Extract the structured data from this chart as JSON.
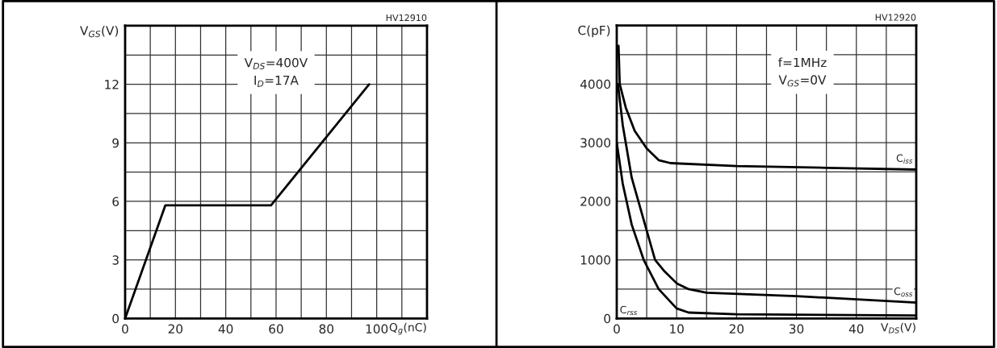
{
  "chart_data": [
    {
      "type": "line",
      "xlabel": "Q$_{g}$(nC)",
      "ylabel": "V$_{GS}$(V)",
      "annotations": [
        "HV12910",
        "V$_{DS}$=400V\nI$_{D}$=17A"
      ],
      "series": [
        {
          "color": "#000000",
          "x": [
            0,
            16,
            58,
            97
          ],
          "values": [
            0,
            5.8,
            5.8,
            12
          ]
        }
      ],
      "xlim": [
        0,
        120
      ],
      "xticks": [
        0,
        {
          "value": 10,
          "label": null
        },
        20,
        {
          "value": 30,
          "label": null
        },
        40,
        {
          "value": 50,
          "label": null
        },
        60,
        {
          "value": 70,
          "label": null
        },
        80,
        {
          "value": 90,
          "label": null
        },
        100,
        {
          "value": 110,
          "label": null
        }
      ],
      "ylim": [
        0,
        15
      ],
      "yticks": [
        0,
        {
          "value": 1.5,
          "label": null
        },
        3,
        {
          "value": 4.5,
          "label": null
        },
        6,
        {
          "value": 7.5,
          "label": null
        },
        9,
        {
          "value": 10.5,
          "label": null
        },
        12,
        {
          "value": 13.5,
          "label": null
        }
      ],
      "grid": true,
      "legend": false,
      "line_style": "solid"
    },
    {
      "type": "line",
      "xlabel": "V$_{DS}$(V)",
      "ylabel": "C(pF)",
      "annotations": [
        "HV12920",
        "f=1MHz\nV$_{GS}$=0V",
        "C$_{rss}$"
      ],
      "series": [
        {
          "name": "C$_{iss}$",
          "color": "#000000",
          "x": [
            0.3,
            0.5,
            1.5,
            3,
            5,
            7,
            9,
            20,
            35,
            50
          ],
          "values": [
            4650,
            4000,
            3600,
            3200,
            2900,
            2700,
            2650,
            2600,
            2570,
            2540
          ]
        },
        {
          "name": "C$_{oss}$",
          "color": "#000000",
          "x": [
            0.2,
            1,
            2.5,
            5,
            6.4,
            8,
            10,
            12,
            15,
            30,
            50
          ],
          "values": [
            4000,
            3300,
            2400,
            1500,
            1000,
            800,
            600,
            500,
            440,
            380,
            270
          ]
        },
        {
          "color": "#000000",
          "x": [
            0,
            1,
            2.5,
            4.5,
            7,
            10,
            12,
            20,
            50
          ],
          "values": [
            3000,
            2300,
            1600,
            1000,
            500,
            170,
            100,
            70,
            50
          ]
        }
      ],
      "xlim": [
        0,
        50
      ],
      "xticks": [
        0,
        {
          "value": 5,
          "label": null
        },
        10,
        {
          "value": 15,
          "label": null
        },
        20,
        {
          "value": 25,
          "label": null
        },
        30,
        {
          "value": 35,
          "label": null
        },
        40,
        {
          "value": 45,
          "label": null
        }
      ],
      "ylim": [
        0,
        5000
      ],
      "yticks": [
        0,
        {
          "value": 500,
          "label": null
        },
        1000,
        {
          "value": 1500,
          "label": null
        },
        2000,
        {
          "value": 2500,
          "label": null
        },
        3000,
        {
          "value": 3500,
          "label": null
        },
        4000,
        {
          "value": 4500,
          "label": null
        }
      ],
      "grid": true,
      "legend": false,
      "line_style": "solid"
    }
  ]
}
